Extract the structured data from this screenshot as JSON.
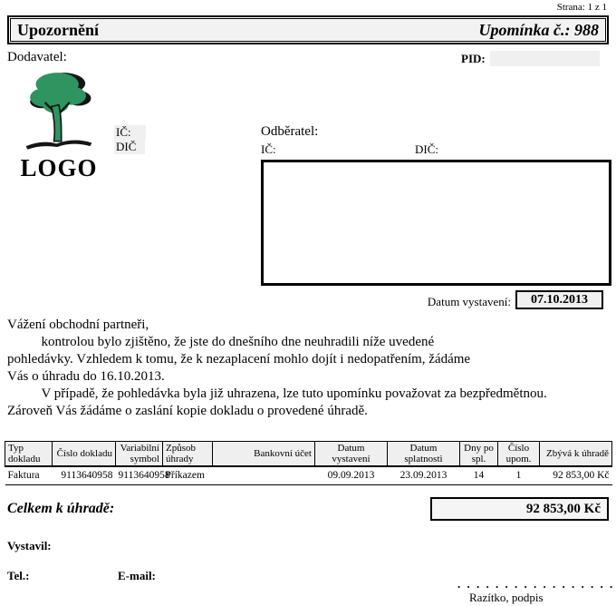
{
  "page": {
    "strana": "Strana: 1 z 1"
  },
  "titlebar": {
    "title": "Upozornění",
    "reminder_no": "Upomínka č.: 988"
  },
  "supplier": {
    "label": "Dodavatel:",
    "pid_label": "PID:",
    "logo_text": "LOGO",
    "logo_icon": "tree-icon",
    "logo_color": "#2e9460",
    "ic_label": "IČ:",
    "dic_label": "DIČ"
  },
  "customer": {
    "label": "Odběratel:",
    "ic_label": "IČ:",
    "dic_label": "DIČ:"
  },
  "issue_date": {
    "label": "Datum vystavení:",
    "value": "07.10.2013"
  },
  "body": {
    "text": "Vážení obchodní partneři,\n          kontrolou bylo zjištěno, že jste do dnešního dne neuhradili níže uvedené\npohledávky. Vzhledem k tomu, že k nezaplacení mohlo dojít i nedopatřením, žádáme\nVás o úhradu do 16.10.2013.\n          V případě, že pohledávka byla již uhrazena, lze tuto upomínku považovat za bezpředmětnou.\nZároveň Vás žádáme o zaslání kopie dokladu o provedené úhradě."
  },
  "table": {
    "headers": [
      "Typ dokladu",
      "Číslo dokladu",
      "Variabilní symbol",
      "Způsob úhrady",
      "Bankovní účet",
      "Datum vystavení",
      "Datum splatnosti",
      "Dny po spl.",
      "Číslo upom.",
      "Zbývá k úhradě"
    ],
    "rows": [
      [
        "Faktura",
        "9113640958",
        "9113640958",
        "Příkazem",
        "",
        "09.09.2013",
        "23.09.2013",
        "14",
        "1",
        "92 853,00 Kč"
      ]
    ]
  },
  "total": {
    "label": "Celkem k úhradě:",
    "value": "92 853,00 Kč"
  },
  "footer": {
    "issued_by_label": "Vystavil:",
    "tel_label": "Tel.:",
    "email_label": "E-mail:",
    "signature_dots": ". . . . . . . . . . . . . . . . . .",
    "signature_label": "Razítko, podpis"
  }
}
